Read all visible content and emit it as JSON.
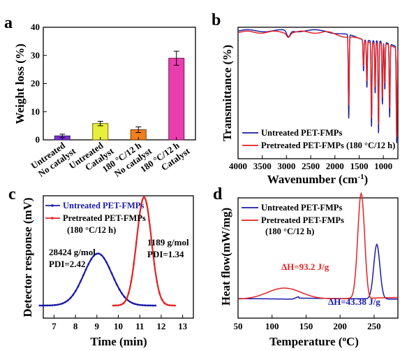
{
  "colors": {
    "blue": "#1a1aa8",
    "red": "#e52121",
    "olive_edge": "#666600"
  },
  "chart_data": [
    {
      "panel": "a",
      "type": "bar",
      "ylabel": "Weight loss (%)",
      "ylim": [
        0,
        40
      ],
      "yticks": [
        0,
        10,
        20,
        30,
        40
      ],
      "categories": [
        [
          "Untreated",
          "No catalyst"
        ],
        [
          "Untreated",
          "Catalyst"
        ],
        [
          "180 °C/12 h",
          "No catalyst"
        ],
        [
          "180 °C/12 h",
          "Catalyst"
        ]
      ],
      "values": [
        1.4,
        5.8,
        3.6,
        29.0
      ],
      "errors": [
        0.6,
        0.8,
        1.0,
        2.5
      ],
      "bar_colors": [
        "#7b2fd6",
        "#e8ee3c",
        "#ef7f1a",
        "#e93fae"
      ],
      "bar_edges": [
        "#3a1466",
        "#6b6b00",
        "#7a3a00",
        "#6e1850"
      ]
    },
    {
      "panel": "b",
      "type": "line",
      "xlabel": "Wavenumber (cm",
      "xlabel_sup": "-1",
      "xlabel_close": ")",
      "ylabel": "Transmittance (%)",
      "xlim": [
        4000,
        700
      ],
      "xticks": [
        4000,
        3500,
        3000,
        2500,
        2000,
        1500,
        1000
      ],
      "series": [
        {
          "name": "Untreated PET-FMPs",
          "color": "#1a1aa8",
          "peaks": [
            [
              2960,
              6
            ],
            [
              1715,
              80
            ],
            [
              1410,
              30
            ],
            [
              1340,
              45
            ],
            [
              1245,
              82
            ],
            [
              1170,
              50
            ],
            [
              1100,
              88
            ],
            [
              1020,
              60
            ],
            [
              970,
              45
            ],
            [
              870,
              70
            ],
            [
              725,
              92
            ]
          ]
        },
        {
          "name": "Pretreated PET-FMPs (180 °C/12 h)",
          "color": "#e52121",
          "peaks": [
            [
              2960,
              4
            ],
            [
              1715,
              65
            ],
            [
              1410,
              25
            ],
            [
              1340,
              38
            ],
            [
              1245,
              72
            ],
            [
              1170,
              42
            ],
            [
              1100,
              78
            ],
            [
              1020,
              52
            ],
            [
              970,
              38
            ],
            [
              870,
              60
            ],
            [
              725,
              85
            ]
          ]
        }
      ]
    },
    {
      "panel": "c",
      "type": "line",
      "xlabel": "Time (min)",
      "ylabel": "Detector response (mV)",
      "xlim": [
        6.5,
        13.5
      ],
      "xticks": [
        7,
        8,
        9,
        10,
        11,
        12,
        13
      ],
      "series": [
        {
          "name": "Untreated PET-FMPs",
          "color": "#1a1aa8",
          "type": "gaussian",
          "center": 9.05,
          "width": 0.85,
          "height": 0.48
        },
        {
          "name": "Pretreated PET-FMPs (180 °C/12 h)",
          "color": "#e52121",
          "type": "gaussian",
          "center": 11.2,
          "width": 0.45,
          "height": 1.0
        }
      ],
      "legend_blue": "Untreated PET-FMPs",
      "legend_red": "Pretreated PET-FMPs",
      "legend_red2": "(180 °C/12 h)",
      "annotations": [
        {
          "text": "28424 g/mol",
          "color": "#000000"
        },
        {
          "text": "PDI=2.42",
          "color": "#000000"
        },
        {
          "text": "1189 g/mol",
          "color": "#000000"
        },
        {
          "text": "PDI=1.34",
          "color": "#000000"
        }
      ]
    },
    {
      "panel": "d",
      "type": "line",
      "xlabel": "Temperature (",
      "xlabel_sup": "o",
      "xlabel_close": "C)",
      "ylabel": "Heat flow(mW/mg)",
      "xlim": [
        50,
        285
      ],
      "xticks": [
        50,
        100,
        150,
        200,
        250
      ],
      "series": [
        {
          "name": "Untreated PET-FMPs",
          "color": "#1a1aa8",
          "peak_T": 254,
          "annotation": "ΔH=43.38 J/g"
        },
        {
          "name": "Pretreated PET-FMPs (180 °C/12 h)",
          "color": "#e52121",
          "peak_T": 231,
          "annotation": "ΔH=93.2 J/g"
        }
      ],
      "legend_blue": "Untreated PET-FMPs",
      "legend_red": "Pretreated PET-FMPs",
      "legend_red2": "(180 °C/12 h)"
    }
  ],
  "panel_labels": [
    "a",
    "b",
    "c",
    "d"
  ]
}
